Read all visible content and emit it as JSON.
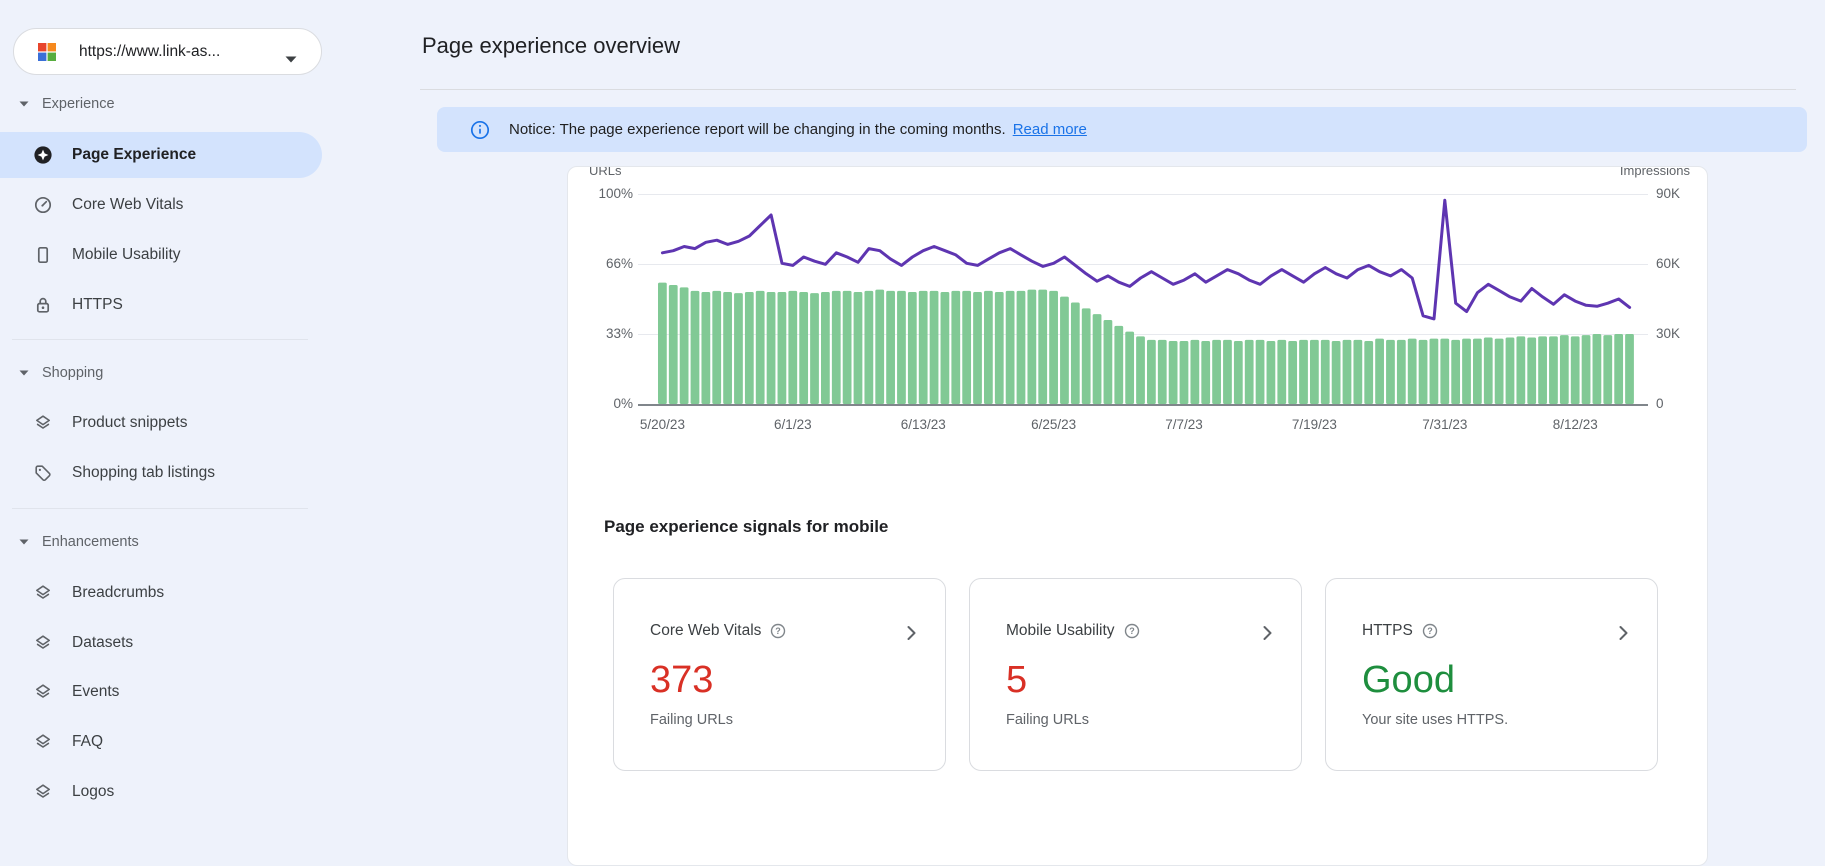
{
  "header": {
    "title": "Page experience overview"
  },
  "sidebar": {
    "property_selector": {
      "url": "https://www.link-as...",
      "icon": "site-favicon"
    },
    "sections": [
      {
        "label": "Experience",
        "items": [
          {
            "label": "Page Experience",
            "icon": "page-experience",
            "selected": true
          },
          {
            "label": "Core Web Vitals",
            "icon": "core-web-vitals",
            "selected": false
          },
          {
            "label": "Mobile Usability",
            "icon": "mobile-usability",
            "selected": false
          },
          {
            "label": "HTTPS",
            "icon": "https-lock",
            "selected": false
          }
        ]
      },
      {
        "label": "Shopping",
        "items": [
          {
            "label": "Product snippets",
            "icon": "layers",
            "selected": false
          },
          {
            "label": "Shopping tab listings",
            "icon": "tag",
            "selected": false
          }
        ]
      },
      {
        "label": "Enhancements",
        "items": [
          {
            "label": "Breadcrumbs",
            "icon": "layers",
            "selected": false
          },
          {
            "label": "Datasets",
            "icon": "layers",
            "selected": false
          },
          {
            "label": "Events",
            "icon": "layers",
            "selected": false
          },
          {
            "label": "FAQ",
            "icon": "layers",
            "selected": false
          },
          {
            "label": "Logos",
            "icon": "layers",
            "selected": false
          }
        ]
      }
    ]
  },
  "notice": {
    "text": "Notice: The page experience report will be changing in the coming months.",
    "link_label": "Read more"
  },
  "chart_data": {
    "type": "bar",
    "n_days": 90,
    "x_ticks": [
      {
        "label": "5/20/23",
        "day": 0
      },
      {
        "label": "6/1/23",
        "day": 12
      },
      {
        "label": "6/13/23",
        "day": 24
      },
      {
        "label": "6/25/23",
        "day": 36
      },
      {
        "label": "7/7/23",
        "day": 48
      },
      {
        "label": "7/19/23",
        "day": 60
      },
      {
        "label": "7/31/23",
        "day": 72
      },
      {
        "label": "8/12/23",
        "day": 84
      }
    ],
    "left_axis": {
      "title": "URLs",
      "range": [
        0,
        100
      ],
      "ticks": [
        {
          "label": "100%",
          "value": 100
        },
        {
          "label": "66%",
          "value": 66.6
        },
        {
          "label": "33%",
          "value": 33.3
        },
        {
          "label": "0%",
          "value": 0
        }
      ]
    },
    "right_axis": {
      "title": "Impressions",
      "range": [
        0,
        90
      ],
      "ticks": [
        {
          "label": "90K",
          "value": 90
        },
        {
          "label": "60K",
          "value": 60
        },
        {
          "label": "30K",
          "value": 30
        },
        {
          "label": "0",
          "value": 0
        }
      ]
    },
    "series": [
      {
        "name": "Impressions",
        "type": "bar",
        "axis": "right",
        "color": "#81c995",
        "values_thousands": [
          52,
          51,
          50,
          48.5,
          48,
          48.5,
          48,
          47.5,
          48,
          48.5,
          48,
          48,
          48.5,
          48,
          47.5,
          48,
          48.5,
          48.5,
          48,
          48.5,
          49,
          48.5,
          48.5,
          48,
          48.5,
          48.5,
          48,
          48.5,
          48.5,
          48,
          48.5,
          48,
          48.5,
          48.5,
          49,
          49,
          48.5,
          46,
          43.5,
          41,
          38.5,
          36,
          33.5,
          31,
          29,
          27.5,
          27.5,
          27,
          27,
          27.5,
          27,
          27.5,
          27.5,
          27,
          27.5,
          27.5,
          27,
          27.5,
          27,
          27.5,
          27.5,
          27.5,
          27,
          27.5,
          27.5,
          27,
          28,
          27.5,
          27.5,
          28,
          27.5,
          28,
          28,
          27.5,
          28,
          28,
          28.5,
          28,
          28.5,
          29,
          28.5,
          29,
          29,
          29.5,
          29,
          29.5,
          30,
          29.5,
          30,
          30
        ]
      },
      {
        "name": "Good URLs",
        "type": "line",
        "axis": "left",
        "color": "#5e35b1",
        "values_percent": [
          72,
          73,
          75,
          74,
          77,
          78,
          76,
          77.5,
          80,
          85,
          90,
          67,
          66,
          70,
          68,
          66.5,
          72,
          70,
          67.5,
          74,
          73,
          69,
          66,
          70,
          73,
          75,
          73,
          71,
          67,
          66,
          69,
          72,
          74,
          71,
          68,
          65.5,
          67,
          70,
          66,
          62,
          58.5,
          61,
          58,
          56,
          60,
          63,
          60,
          57,
          59,
          62,
          58,
          61,
          64,
          62,
          59,
          57,
          61,
          64,
          61,
          58,
          62,
          65,
          62,
          60,
          64,
          66,
          63,
          61,
          64,
          60,
          42,
          40.5,
          97,
          48,
          44,
          53,
          57,
          54,
          51,
          49,
          55,
          51,
          47.5,
          52,
          49,
          47,
          46.5,
          48,
          50,
          46
        ]
      }
    ],
    "grid": true,
    "legend": "none"
  },
  "signals": {
    "heading": "Page experience signals for mobile",
    "cards": [
      {
        "title": "Core Web Vitals",
        "value": "373",
        "value_color": "#d93025",
        "subtitle": "Failing URLs"
      },
      {
        "title": "Mobile Usability",
        "value": "5",
        "value_color": "#d93025",
        "subtitle": "Failing URLs"
      },
      {
        "title": "HTTPS",
        "value": "Good",
        "value_color": "#1e8e3e",
        "subtitle": "Your site uses HTTPS."
      }
    ]
  },
  "colors": {
    "page_background": "#eef2fb",
    "selection_blue": "#d3e3fd",
    "accent_blue": "#1a73e8",
    "bar_green": "#81c995",
    "line_purple": "#5e35b1",
    "error_red": "#d93025",
    "good_green": "#1e8e3e"
  }
}
